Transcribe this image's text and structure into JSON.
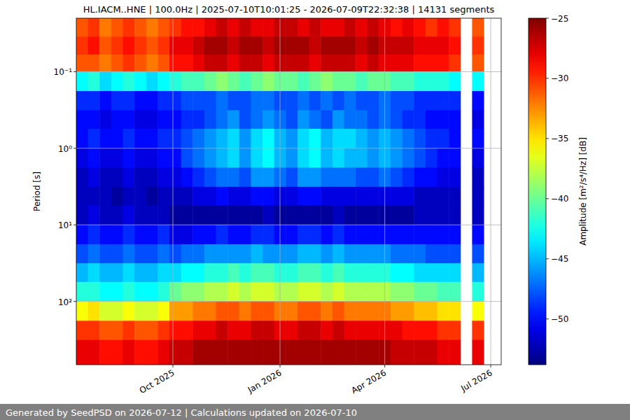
{
  "chart_data": {
    "type": "heatmap",
    "title": "HL.IACM..HNE | 100.0Hz | 2025-07-10T10:01:25 - 2026-07-09T22:32:38 | 14131 segments",
    "y_label": "Period [s]",
    "footer": "Generated by SeedPSD on 2026-07-12 | Calculations updated on 2026-07-10",
    "log": "y",
    "grid": true,
    "color": "jet",
    "xlim": [
      "2025-07-10",
      "2026-07-10"
    ],
    "xticks": [
      {
        "value": "2025-10-01",
        "label": "Oct 2025"
      },
      {
        "value": "2026-01-01",
        "label": "Jan 2026"
      },
      {
        "value": "2026-04-01",
        "label": "Apr 2026"
      },
      {
        "value": "2026-07-01",
        "label": "Jul 2026"
      }
    ],
    "ylim": [
      670,
      0.02
    ],
    "yticks": [
      {
        "value": 0.1,
        "label": "10⁻¹"
      },
      {
        "value": 1,
        "label": "10⁰"
      },
      {
        "value": 10,
        "label": "10¹"
      },
      {
        "value": 100,
        "label": "10²"
      }
    ],
    "x_edges": [
      "2025-07-10",
      "2025-07-20",
      "2025-07-30",
      "2025-08-09",
      "2025-08-19",
      "2025-08-29",
      "2025-09-08",
      "2025-09-18",
      "2025-09-28",
      "2025-10-08",
      "2025-10-18",
      "2025-10-28",
      "2025-11-07",
      "2025-11-17",
      "2025-11-27",
      "2025-12-07",
      "2025-12-17",
      "2025-12-27",
      "2026-01-06",
      "2026-01-16",
      "2026-01-26",
      "2026-02-05",
      "2026-02-15",
      "2026-02-25",
      "2026-03-07",
      "2026-03-17",
      "2026-03-27",
      "2026-04-06",
      "2026-04-16",
      "2026-04-26",
      "2026-05-06",
      "2026-05-16",
      "2026-05-26",
      "2026-06-05",
      "2026-06-15",
      "2026-06-25",
      "2026-07-05"
    ],
    "y_edges": [
      0.02,
      0.035,
      0.06,
      0.1,
      0.18,
      0.32,
      0.56,
      1,
      1.8,
      3.2,
      5.6,
      10,
      18,
      32,
      56,
      100,
      180,
      320,
      670
    ],
    "cells": [
      [
        -31,
        -30,
        -32,
        -31,
        -30,
        -31,
        -32,
        -31,
        -30,
        -29,
        -29,
        -28,
        -27,
        -28,
        -27,
        -28,
        -28,
        -27,
        -27,
        -28,
        -27,
        -28,
        -28,
        -27,
        -28,
        -27,
        -28,
        -29,
        -28,
        -29,
        -30,
        -29,
        -30,
        null,
        -31,
        null
      ],
      [
        -30,
        -29,
        -31,
        -30,
        -29,
        -30,
        -31,
        -30,
        -28,
        -28,
        -27,
        -26,
        -26,
        -27,
        -26,
        -26,
        -27,
        -26,
        -26,
        -26,
        -27,
        -26,
        -26,
        -26,
        -27,
        -26,
        -27,
        -27,
        -27,
        -28,
        -28,
        -28,
        -29,
        null,
        -30,
        null
      ],
      [
        -31,
        -31,
        -32,
        -31,
        -30,
        -31,
        -32,
        -31,
        -29,
        -29,
        -28,
        -27,
        -27,
        -28,
        -27,
        -27,
        -28,
        -27,
        -27,
        -27,
        -28,
        -27,
        -27,
        -27,
        -28,
        -27,
        -28,
        -28,
        -28,
        -29,
        -29,
        -29,
        -30,
        null,
        -31,
        null
      ],
      [
        -43,
        -42,
        -44,
        -43,
        -42,
        -43,
        -44,
        -43,
        -42,
        -41,
        -41,
        -40,
        -39,
        -40,
        -41,
        -40,
        -39,
        -40,
        -40,
        -41,
        -40,
        -39,
        -40,
        -40,
        -41,
        -40,
        -40,
        -41,
        -41,
        -42,
        -42,
        -42,
        -43,
        null,
        -43,
        null
      ],
      [
        -49,
        -49,
        -50,
        -49,
        -49,
        -50,
        -50,
        -49,
        -49,
        -48,
        -48,
        -48,
        -47,
        -48,
        -48,
        -47,
        -47,
        -48,
        -48,
        -47,
        -48,
        -47,
        -48,
        -47,
        -48,
        -48,
        -47,
        -48,
        -48,
        -49,
        -49,
        -49,
        -49,
        null,
        -50,
        null
      ],
      [
        -50,
        -50,
        -51,
        -50,
        -50,
        -51,
        -51,
        -50,
        -50,
        -49,
        -49,
        -48,
        -47,
        -46,
        -48,
        -47,
        -46,
        -47,
        -48,
        -46,
        -47,
        -48,
        -46,
        -47,
        -47,
        -48,
        -47,
        -48,
        -49,
        -49,
        -50,
        -50,
        -50,
        null,
        -51,
        null
      ],
      [
        -50,
        -49,
        -50,
        -50,
        -49,
        -50,
        -50,
        -49,
        -49,
        -48,
        -47,
        -46,
        -45,
        -44,
        -46,
        -44,
        -43,
        -45,
        -46,
        -44,
        -43,
        -45,
        -44,
        -44,
        -45,
        -46,
        -45,
        -46,
        -47,
        -48,
        -49,
        -49,
        -50,
        null,
        -50,
        null
      ],
      [
        -51,
        -50,
        -51,
        -51,
        -50,
        -51,
        -51,
        -50,
        -50,
        -48,
        -47,
        -46,
        -45,
        -44,
        -46,
        -44,
        -43,
        -45,
        -46,
        -44,
        -43,
        -45,
        -44,
        -45,
        -45,
        -46,
        -45,
        -46,
        -47,
        -48,
        -49,
        -50,
        -50,
        null,
        -51,
        null
      ],
      [
        -52,
        -51,
        -52,
        -52,
        -51,
        -52,
        -52,
        -51,
        -51,
        -50,
        -49,
        -48,
        -47,
        -47,
        -48,
        -46,
        -46,
        -47,
        -48,
        -46,
        -46,
        -47,
        -47,
        -47,
        -48,
        -48,
        -47,
        -48,
        -49,
        -50,
        -50,
        -51,
        -51,
        null,
        -52,
        null
      ],
      [
        -52,
        -52,
        -52,
        -53,
        -52,
        -52,
        -53,
        -52,
        -52,
        -52,
        -51,
        -51,
        -50,
        -51,
        -51,
        -50,
        -50,
        -51,
        -51,
        -50,
        -50,
        -51,
        -51,
        -51,
        -51,
        -51,
        -51,
        -51,
        -51,
        -52,
        -52,
        -52,
        -52,
        null,
        -52,
        null
      ],
      [
        -52,
        -51,
        -52,
        -52,
        -51,
        -52,
        -52,
        -52,
        -53,
        -53,
        -53,
        -53,
        -53,
        -53,
        -53,
        -53,
        -52,
        -53,
        -53,
        -53,
        -53,
        -53,
        -52,
        -53,
        -53,
        -53,
        -53,
        -53,
        -53,
        -52,
        -52,
        -52,
        -52,
        null,
        -52,
        null
      ],
      [
        -50,
        -49,
        -50,
        -50,
        -49,
        -50,
        -50,
        -49,
        -51,
        -51,
        -50,
        -50,
        -49,
        -50,
        -50,
        -49,
        -49,
        -50,
        -50,
        -49,
        -49,
        -50,
        -49,
        -50,
        -50,
        -50,
        -50,
        -50,
        -50,
        -50,
        -50,
        -50,
        -50,
        null,
        -50,
        null
      ],
      [
        -48,
        -47,
        -48,
        -48,
        -47,
        -48,
        -48,
        -47,
        -48,
        -47,
        -47,
        -46,
        -46,
        -46,
        -46,
        -45,
        -46,
        -46,
        -46,
        -45,
        -45,
        -46,
        -45,
        -46,
        -46,
        -46,
        -46,
        -47,
        -47,
        -47,
        -48,
        -48,
        -48,
        null,
        -48,
        null
      ],
      [
        -45,
        -44,
        -45,
        -45,
        -44,
        -45,
        -45,
        -44,
        -44,
        -43,
        -43,
        -42,
        -42,
        -41,
        -42,
        -41,
        -41,
        -42,
        -42,
        -41,
        -41,
        -42,
        -41,
        -42,
        -42,
        -42,
        -42,
        -43,
        -43,
        -44,
        -44,
        -44,
        -44,
        null,
        -45,
        null
      ],
      [
        -42,
        -42,
        -43,
        -43,
        -42,
        -43,
        -43,
        -42,
        -40,
        -39,
        -39,
        -38,
        -38,
        -37,
        -38,
        -37,
        -37,
        -38,
        -38,
        -37,
        -37,
        -38,
        -37,
        -38,
        -38,
        -38,
        -38,
        -39,
        -39,
        -40,
        -40,
        -41,
        -41,
        null,
        -42,
        null
      ],
      [
        -36,
        -35,
        -37,
        -37,
        -36,
        -37,
        -37,
        -36,
        -33,
        -33,
        -32,
        -32,
        -31,
        -31,
        -32,
        -31,
        -31,
        -32,
        -32,
        -31,
        -31,
        -32,
        -31,
        -32,
        -32,
        -32,
        -32,
        -33,
        -33,
        -34,
        -34,
        -35,
        -35,
        null,
        -36,
        null
      ],
      [
        -30,
        -30,
        -31,
        -31,
        -30,
        -31,
        -31,
        -30,
        -29,
        -29,
        -28,
        -28,
        -27,
        -28,
        -28,
        -27,
        -27,
        -28,
        -28,
        -27,
        -27,
        -28,
        -27,
        -28,
        -28,
        -28,
        -28,
        -28,
        -29,
        -29,
        -29,
        -30,
        -30,
        null,
        -30,
        null
      ],
      [
        -28,
        -28,
        -29,
        -29,
        -28,
        -29,
        -29,
        -28,
        -27,
        -27,
        -26,
        -26,
        -26,
        -26,
        -26,
        -26,
        -26,
        -26,
        -26,
        -26,
        -26,
        -26,
        -26,
        -26,
        -26,
        -26,
        -26,
        -27,
        -27,
        -27,
        -27,
        -28,
        -28,
        null,
        -28,
        null
      ]
    ],
    "colorbar": {
      "label": "Amplitude [m²/s⁴/Hz] [dB]",
      "range": [
        -53.8,
        -25
      ],
      "ticks": [
        {
          "value": -25,
          "label": "−25"
        },
        {
          "value": -30,
          "label": "−30"
        },
        {
          "value": -35,
          "label": "−35"
        },
        {
          "value": -40,
          "label": "−40"
        },
        {
          "value": -45,
          "label": "−45"
        },
        {
          "value": -50,
          "label": "−50"
        }
      ]
    }
  }
}
